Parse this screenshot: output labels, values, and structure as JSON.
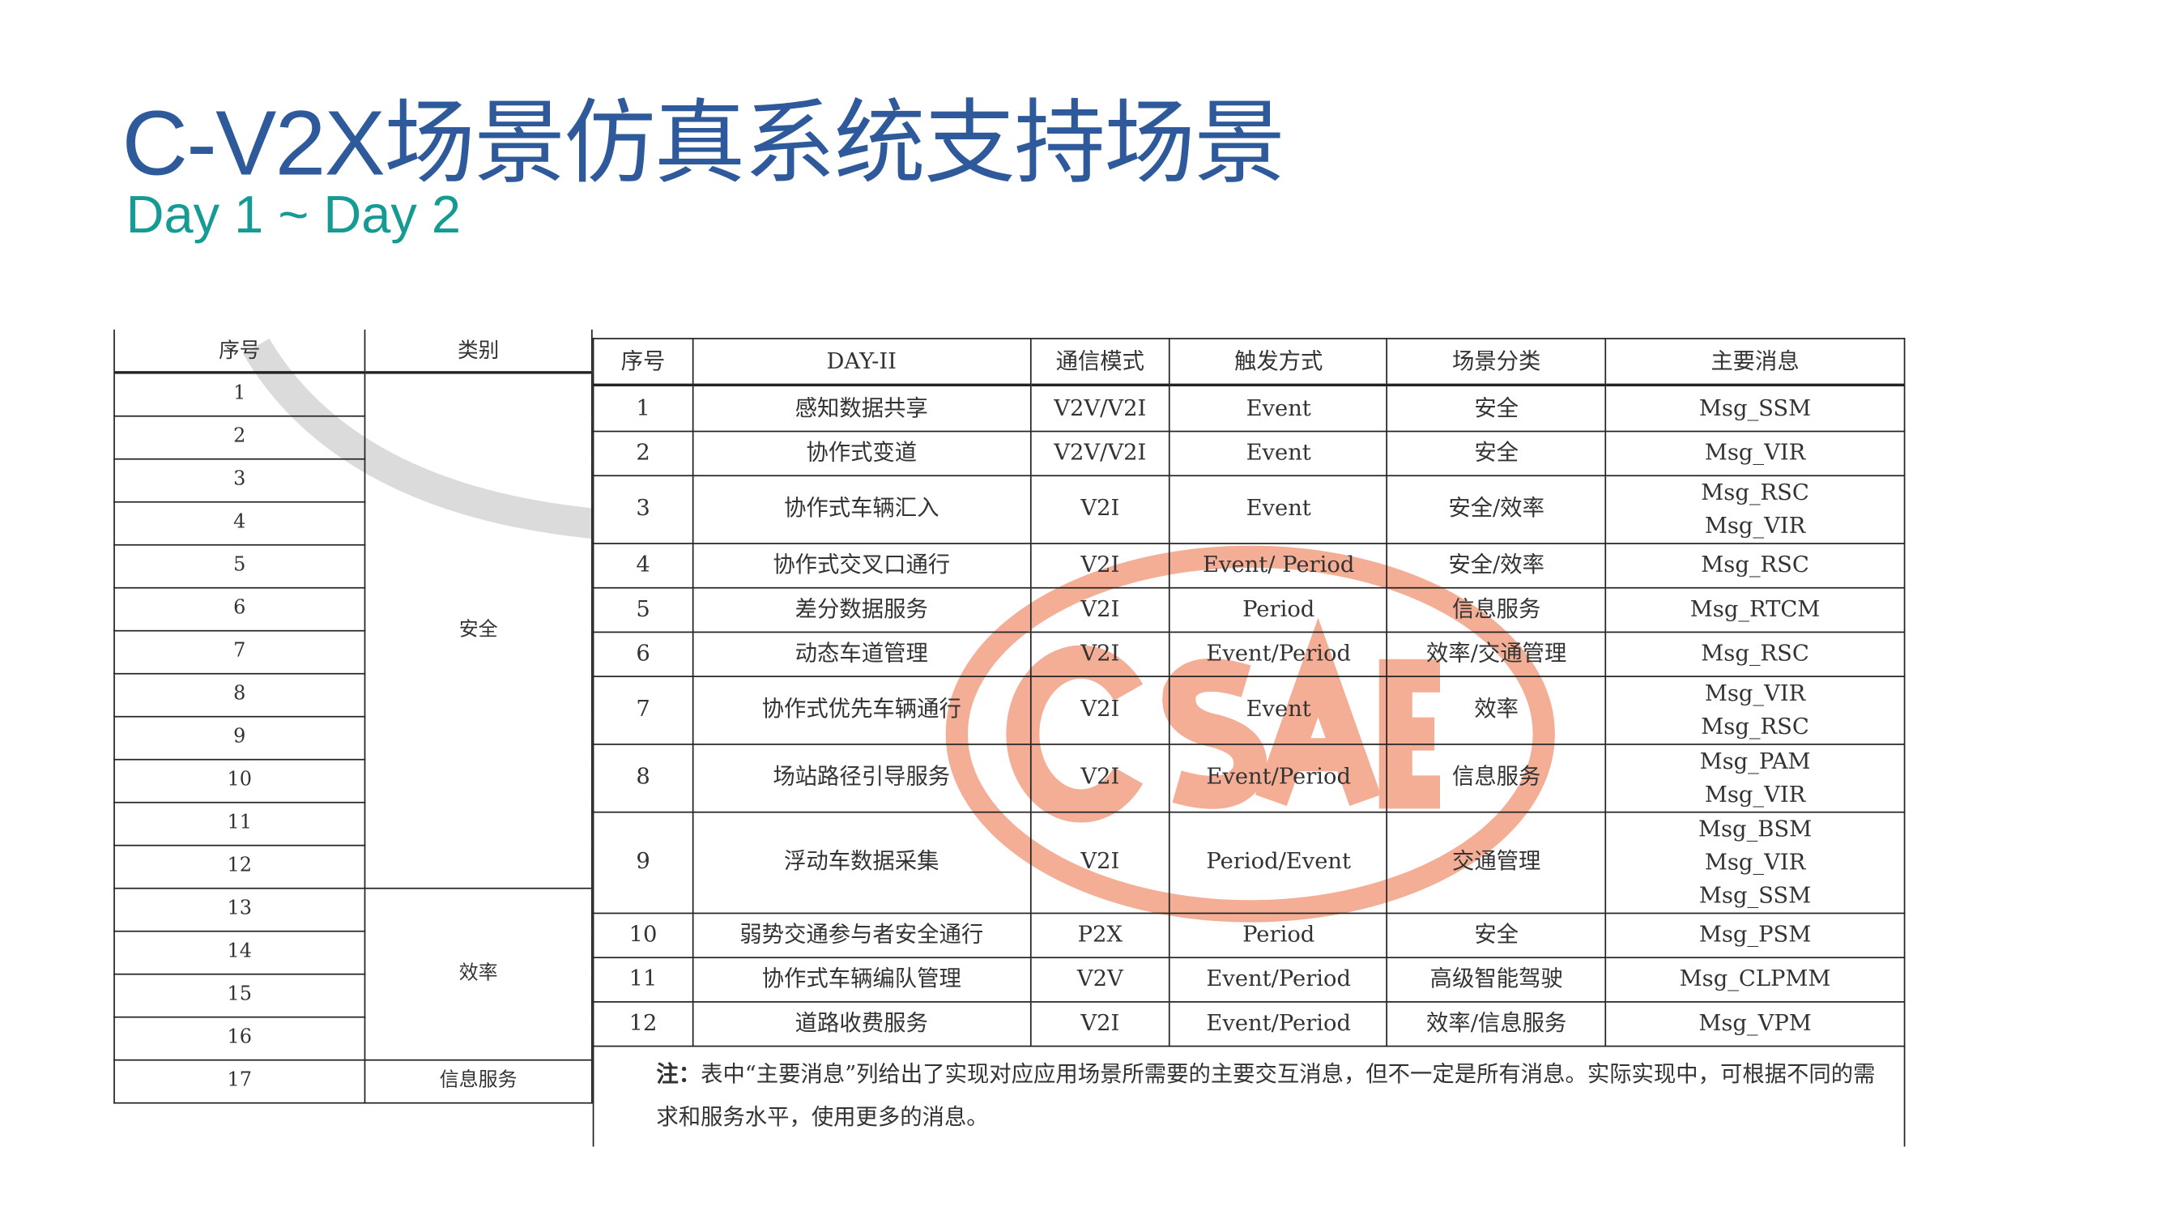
{
  "title": "C-V2X场景仿真系统支持场景",
  "subtitle": "Day 1 ~ Day 2",
  "left_table": {
    "headers": [
      "序号",
      "类别"
    ],
    "numbers": [
      "1",
      "2",
      "3",
      "4",
      "5",
      "6",
      "7",
      "8",
      "9",
      "10",
      "11",
      "12",
      "13",
      "14",
      "15",
      "16",
      "17"
    ],
    "categories": [
      {
        "label": "安全",
        "span": 12
      },
      {
        "label": "效率",
        "span": 4
      },
      {
        "label": "信息服务",
        "span": 1
      }
    ]
  },
  "right_table": {
    "headers": [
      "序号",
      "DAY-II",
      "通信模式",
      "触发方式",
      "场景分类",
      "主要消息"
    ],
    "rows": [
      [
        "1",
        "感知数据共享",
        "V2V/V2I",
        "Event",
        "安全",
        "Msg_SSM"
      ],
      [
        "2",
        "协作式变道",
        "V2V/V2I",
        "Event",
        "安全",
        "Msg_VIR"
      ],
      [
        "3",
        "协作式车辆汇入",
        "V2I",
        "Event",
        "安全/效率",
        "Msg_RSC\nMsg_VIR"
      ],
      [
        "4",
        "协作式交叉口通行",
        "V2I",
        "Event/ Period",
        "安全/效率",
        "Msg_RSC"
      ],
      [
        "5",
        "差分数据服务",
        "V2I",
        "Period",
        "信息服务",
        "Msg_RTCM"
      ],
      [
        "6",
        "动态车道管理",
        "V2I",
        "Event/Period",
        "效率/交通管理",
        "Msg_RSC"
      ],
      [
        "7",
        "协作式优先车辆通行",
        "V2I",
        "Event",
        "效率",
        "Msg_VIR\nMsg_RSC"
      ],
      [
        "8",
        "场站路径引导服务",
        "V2I",
        "Event/Period",
        "信息服务",
        "Msg_PAM\nMsg_VIR"
      ],
      [
        "9",
        "浮动车数据采集",
        "V2I",
        "Period/Event",
        "交通管理",
        "Msg_BSM\nMsg_VIR\nMsg_SSM"
      ],
      [
        "10",
        "弱势交通参与者安全通行",
        "P2X",
        "Period",
        "安全",
        "Msg_PSM"
      ],
      [
        "11",
        "协作式车辆编队管理",
        "V2V",
        "Event/Period",
        "高级智能驾驶",
        "Msg_CLPMM"
      ],
      [
        "12",
        "道路收费服务",
        "V2I",
        "Event/Period",
        "效率/信息服务",
        "Msg_VPM"
      ]
    ],
    "note_label": "注：",
    "note_text": "表中“主要消息”列给出了实现对应应用场景所需要的主要交互消息，但不一定是所有消息。实际实现中，可根据不同的需求和服务水平，使用更多的消息。"
  },
  "watermark": {
    "text": "CSAE",
    "color": "#ef8c6a"
  },
  "colors": {
    "title": "#2e5a9c",
    "subtitle": "#159b93"
  }
}
